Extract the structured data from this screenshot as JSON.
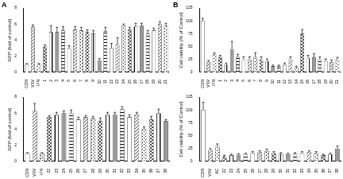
{
  "chart_data": [
    {
      "type": "bar",
      "title": "A",
      "y_label": "GFP (fold of control)",
      "categories": [
        "CON",
        "VSV",
        "IFN",
        "1",
        "2",
        "3",
        "4",
        "5",
        "6",
        "7",
        "8",
        "9",
        "10",
        "11",
        "12",
        "13",
        "14",
        "15",
        "16",
        "17",
        "18",
        "19",
        "20",
        "21"
      ],
      "values": [
        1,
        5.7,
        1,
        3.2,
        5,
        5,
        5.2,
        3,
        5.3,
        5.2,
        5,
        4.8,
        1.5,
        5.1,
        3,
        3.5,
        5.8,
        5.3,
        5.7,
        5.8,
        4.8,
        5.2,
        6,
        5.8
      ],
      "errors": [
        0.1,
        0.2,
        0.1,
        0.2,
        0.8,
        0.6,
        0.5,
        0.3,
        0.4,
        0.4,
        0.3,
        0.4,
        0.2,
        0.5,
        0.6,
        0.8,
        0.2,
        0.3,
        0.4,
        0.3,
        0.4,
        0.3,
        0.3,
        0.3
      ],
      "ylim": [
        0,
        8
      ],
      "yticks": [
        0,
        2,
        4,
        6,
        8
      ],
      "grid": false
    },
    {
      "type": "bar",
      "title": "B",
      "y_label": "Cell viability (% of Control)",
      "categories": [
        "CON",
        "VSV",
        "IFN",
        "1",
        "2",
        "3",
        "4",
        "5",
        "6",
        "7",
        "8",
        "9",
        "10",
        "11",
        "12",
        "13",
        "14",
        "15",
        "16",
        "17",
        "18",
        "19",
        "20",
        "21"
      ],
      "values": [
        100,
        20,
        35,
        30,
        15,
        45,
        30,
        25,
        25,
        30,
        25,
        22,
        12,
        12,
        15,
        25,
        10,
        75,
        28,
        30,
        25,
        22,
        20,
        25
      ],
      "errors": [
        5,
        3,
        3,
        3,
        3,
        15,
        5,
        5,
        5,
        8,
        5,
        4,
        2,
        2,
        3,
        5,
        2,
        8,
        5,
        6,
        5,
        4,
        4,
        4
      ],
      "ylim": [
        0,
        125
      ],
      "yticks": [
        0,
        25,
        50,
        75,
        100,
        125
      ],
      "grid": false
    },
    {
      "type": "bar",
      "y_label": "GFP (fold of control)",
      "categories": [
        "CON",
        "VSV",
        "IFN",
        "22",
        "23",
        "24",
        "25",
        "26",
        "27",
        "28",
        "29",
        "30",
        "31",
        "32",
        "33",
        "34",
        "35",
        "36",
        "37",
        "38"
      ],
      "values": [
        1,
        6.3,
        1,
        5.5,
        5.8,
        6,
        6,
        5.2,
        5.5,
        5.3,
        5,
        5.8,
        5.8,
        6.5,
        5.5,
        5.8,
        4,
        5.2,
        6,
        5
      ],
      "errors": [
        0.1,
        0.9,
        0.1,
        0.2,
        0.3,
        0.3,
        0.4,
        0.3,
        0.2,
        0.3,
        0.4,
        0.3,
        0.3,
        0.3,
        0.3,
        0.3,
        0.3,
        0.4,
        0.5,
        0.2
      ],
      "ylim": [
        0,
        8
      ],
      "yticks": [
        0,
        2,
        4,
        6,
        8
      ],
      "grid": false
    },
    {
      "type": "bar",
      "y_label": "Cell viability (% of Control)",
      "categories": [
        "CON",
        "VSV",
        "AC",
        "22",
        "23",
        "24",
        "25",
        "26",
        "27",
        "28",
        "29",
        "30",
        "31",
        "32",
        "33",
        "34",
        "35",
        "36",
        "37",
        "38"
      ],
      "values": [
        100,
        22,
        30,
        10,
        12,
        13,
        14,
        16,
        18,
        20,
        16,
        15,
        14,
        15,
        16,
        18,
        16,
        12,
        14,
        25
      ],
      "errors": [
        15,
        3,
        4,
        2,
        2,
        2,
        2,
        3,
        3,
        4,
        3,
        2,
        2,
        2,
        3,
        3,
        3,
        2,
        2,
        5
      ],
      "ylim": [
        0,
        125
      ],
      "yticks": [
        0,
        25,
        50,
        75,
        100,
        125
      ],
      "grid": false
    }
  ]
}
